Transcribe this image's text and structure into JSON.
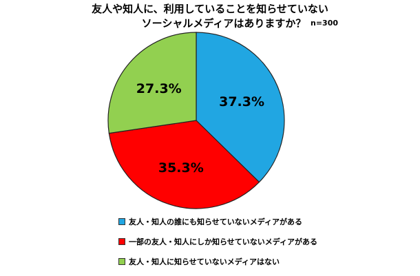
{
  "chart_data": {
    "type": "pie",
    "title_line1": "友人や知人に、利用していることを知らせていない",
    "title_line2": "ソーシャルメディアはありますか？",
    "note": "n=300",
    "slices": [
      {
        "label": "友人・知人の誰にも知らせていないメディアがある",
        "value": 37.3,
        "value_label": "37.3%",
        "color": "#21a6e2"
      },
      {
        "label": "一部の友人・知人にしか知らせていないメディアがある",
        "value": 35.3,
        "value_label": "35.3%",
        "color": "#ff0000"
      },
      {
        "label": "友人・知人に知らせていないメディアはない",
        "value": 27.3,
        "value_label": "27.3%",
        "color": "#92d050"
      }
    ],
    "legend_position": "bottom"
  }
}
